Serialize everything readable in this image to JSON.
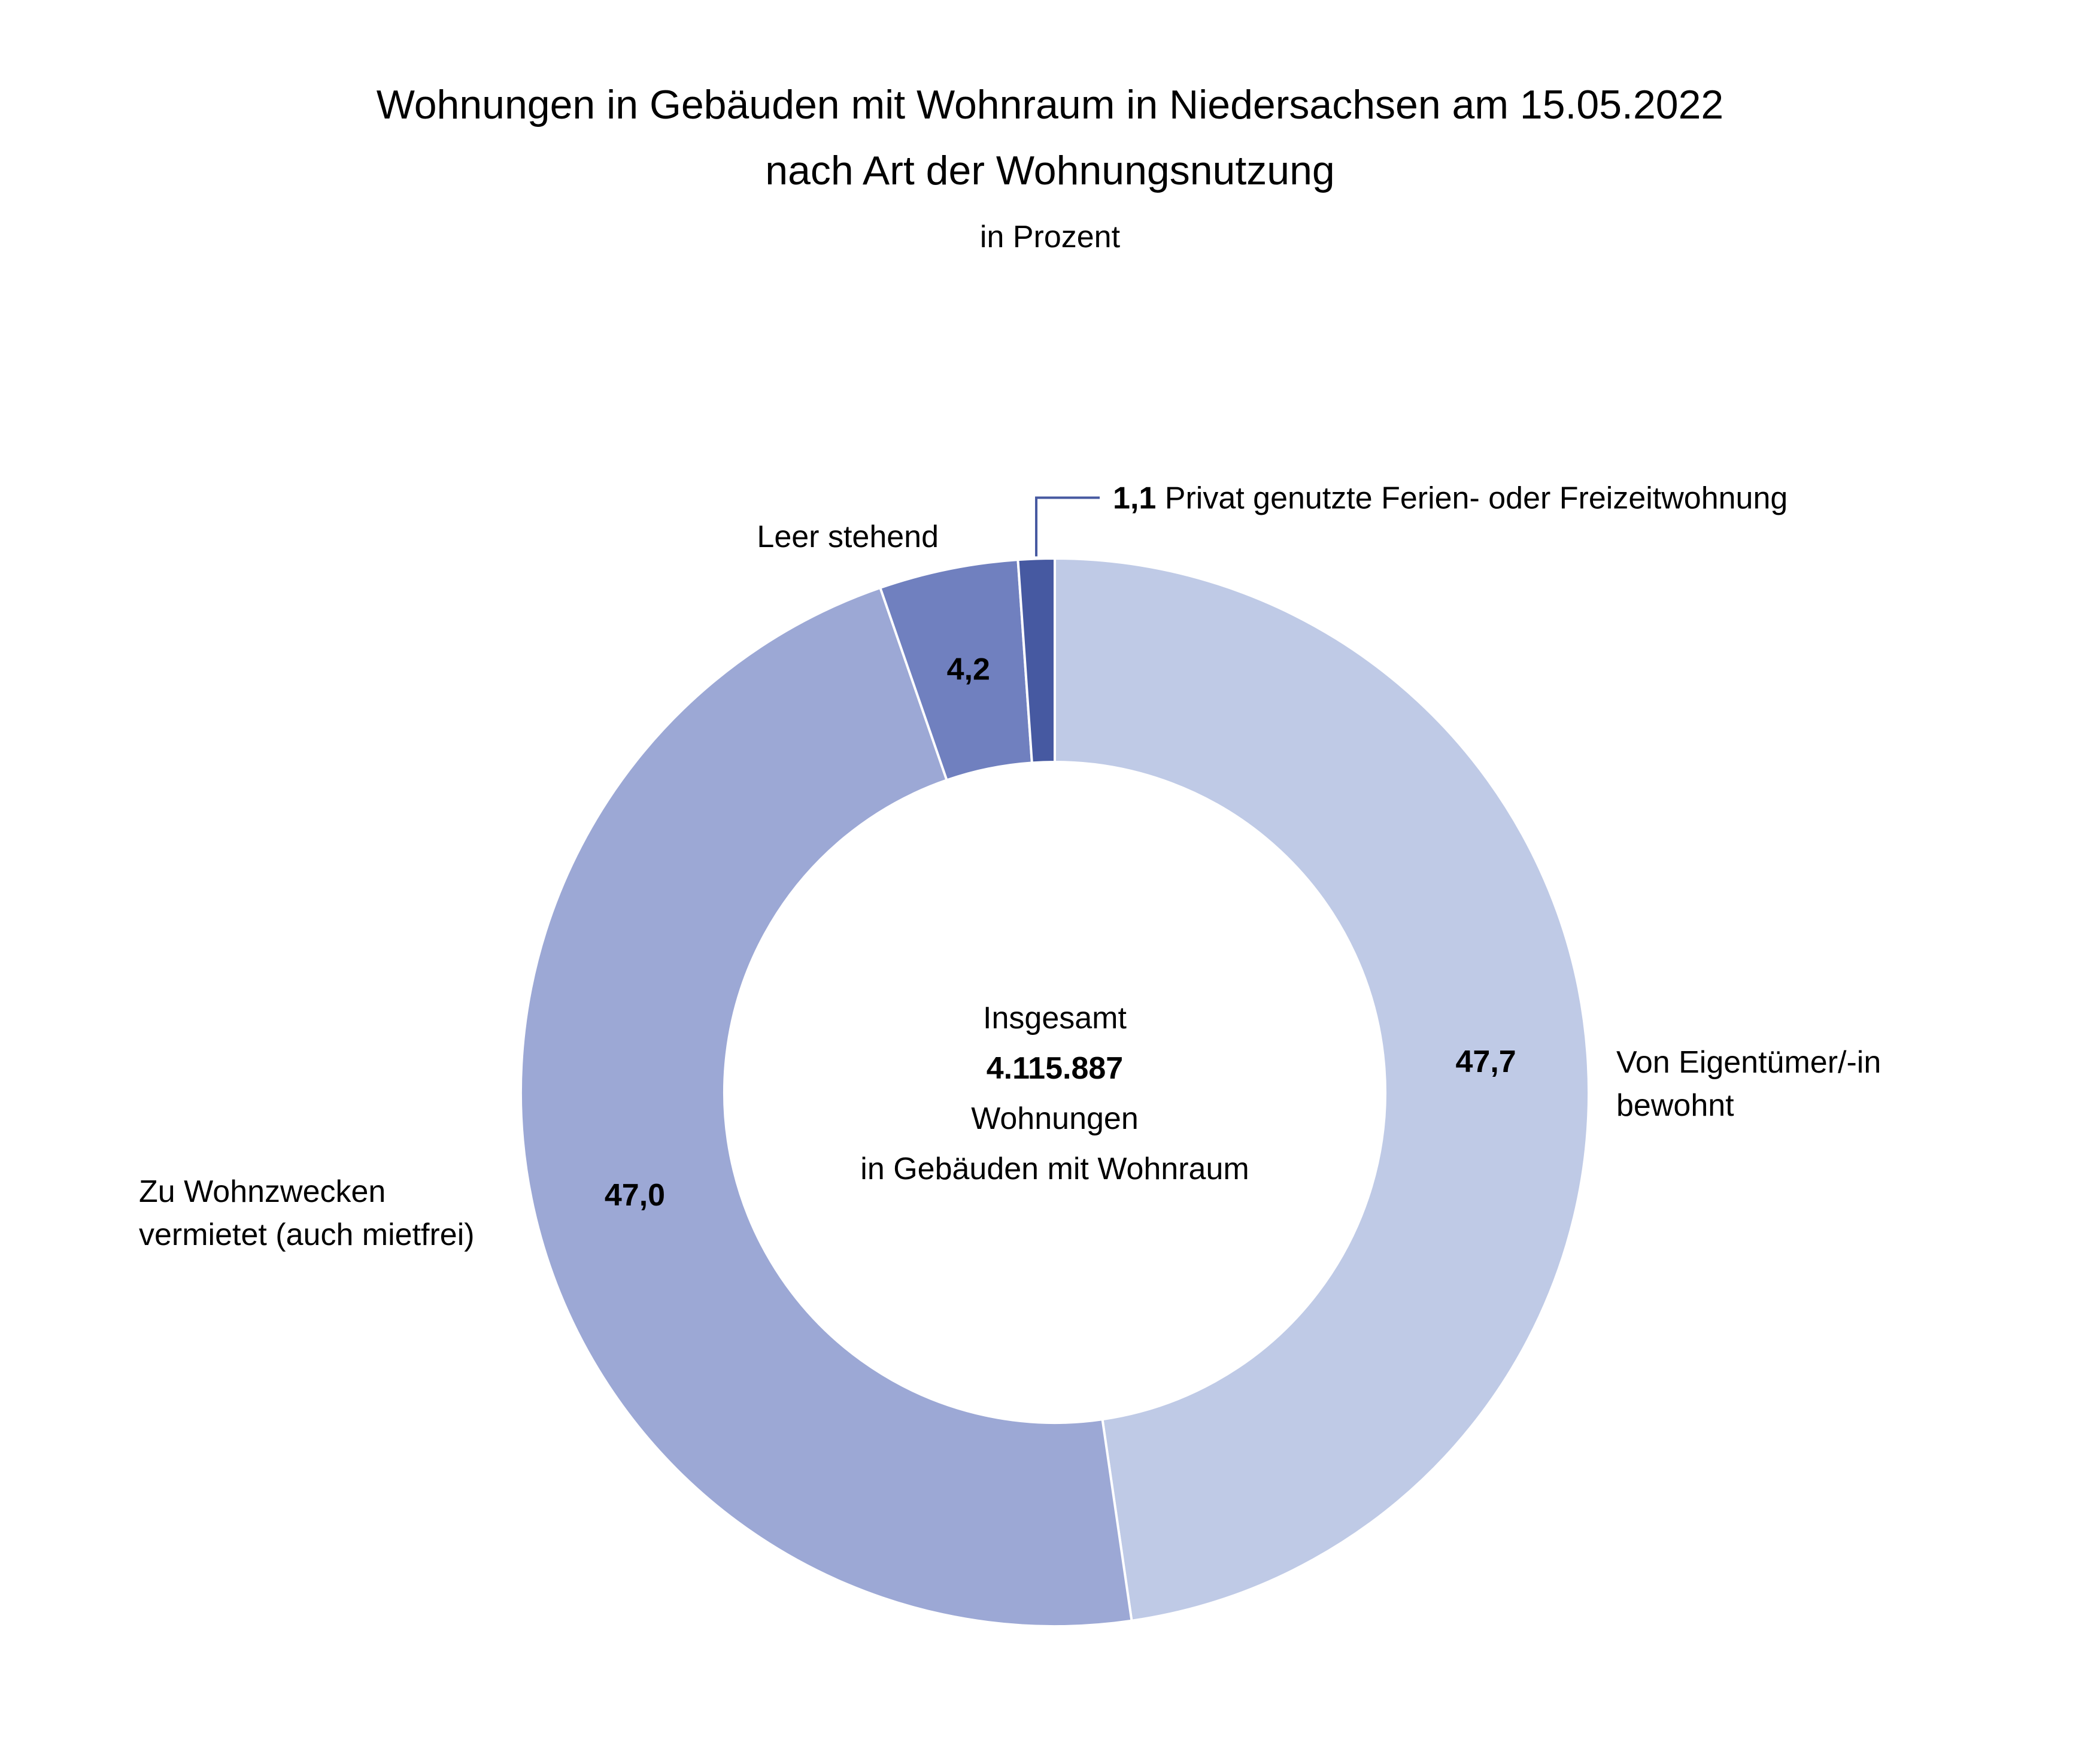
{
  "chart_data": {
    "type": "pie",
    "variant": "donut",
    "title": "Wohnungen in Gebäuden mit Wohnraum in Niedersachsen am 15.05.2022",
    "title_line2": "nach Art der Wohnungsnutzung",
    "subtitle": "in Prozent",
    "unit": "in Prozent",
    "decimal_separator": ",",
    "center": {
      "line1": "Insgesamt",
      "total": "4.115.887",
      "line3": "Wohnungen",
      "line4": "in Gebäuden mit Wohnraum"
    },
    "slices": [
      {
        "label_lines": [
          "Von Eigentümer/-in",
          "bewohnt"
        ],
        "value": 47.7,
        "color": "#bfcae6"
      },
      {
        "label_lines": [
          "Zu Wohnzwecken",
          "vermietet (auch mietfrei)"
        ],
        "value": 47.0,
        "color": "#9ca8d5"
      },
      {
        "label_lines": [
          "Leer stehend"
        ],
        "value": 4.2,
        "color": "#7080bf"
      },
      {
        "label_lines": [
          "Privat genutzte Ferien- oder Freizeitwohnung"
        ],
        "value": 1.1,
        "color": "#4659a1"
      }
    ]
  }
}
